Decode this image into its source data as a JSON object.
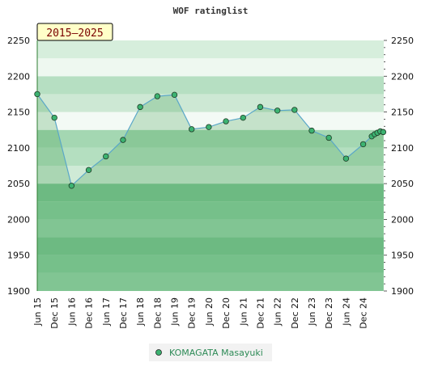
{
  "chart_data": {
    "type": "area",
    "title": "WOF ratinglist",
    "period_label": "2015–2025",
    "ylim": [
      1900,
      2250
    ],
    "y_ticks": [
      1900,
      1950,
      2000,
      2050,
      2100,
      2150,
      2200,
      2250
    ],
    "x_labels": [
      "Jun 15",
      "Dec 15",
      "Jun 16",
      "Dec 16",
      "Jun 17",
      "Dec 17",
      "Jun 18",
      "Dec 18",
      "Jun 19",
      "Dec 19",
      "Jun 20",
      "Dec 20",
      "Jun 21",
      "Dec 21",
      "Jun 22",
      "Dec 22",
      "Jun 23",
      "Dec 23",
      "Jun 24",
      "Dec 24"
    ],
    "grid": true,
    "legend_position": "bottom-center",
    "series": [
      {
        "name": "KOMAGATA Masayuki",
        "color": "#5aa7c8",
        "marker_color": "#3cb371",
        "x": [
          0,
          1,
          2,
          3,
          4,
          5,
          6,
          7,
          8,
          9,
          10,
          11,
          12,
          13,
          14,
          15,
          16,
          17,
          18,
          19,
          19.5,
          19.67,
          19.83,
          20,
          20.17
        ],
        "values": [
          2175,
          2142,
          2047,
          2069,
          2088,
          2111,
          2157,
          2172,
          2174,
          2126,
          2129,
          2137,
          2142,
          2157,
          2152,
          2153,
          2124,
          2114,
          2085,
          2105,
          2116,
          2119,
          2121,
          2123,
          2122
        ]
      }
    ]
  }
}
